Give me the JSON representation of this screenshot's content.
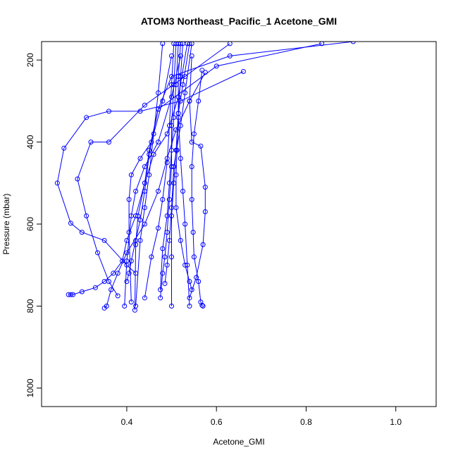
{
  "chart_data": {
    "type": "line",
    "title": "ATOM3 Northeast_Pacific_1 Acetone_GMI",
    "xlabel": "Acetone_GMI",
    "ylabel": "Pressure (mbar)",
    "xlim": [
      0.21,
      1.09
    ],
    "ylim": [
      1045,
      155
    ],
    "y_reversed": true,
    "xticks": [
      0.4,
      0.6,
      0.8,
      1.0
    ],
    "xtick_labels": [
      "0.4",
      "0.6",
      "0.8",
      "1.0"
    ],
    "yticks": [
      200,
      400,
      600,
      800,
      1000
    ],
    "ytick_labels": [
      "200",
      "400",
      "600",
      "800",
      "1000"
    ],
    "grid": false,
    "legend": "none",
    "color": "#0000ff",
    "marker": "open-circle",
    "series": [
      {
        "x": [
          0.905,
          0.63,
          0.5,
          0.47,
          0.45,
          0.44,
          0.42,
          0.4,
          0.39,
          0.37,
          0.35,
          0.33,
          0.3,
          0.28,
          0.275,
          0.27
        ],
        "y": [
          155,
          190,
          240,
          320,
          420,
          500,
          580,
          640,
          690,
          720,
          740,
          755,
          765,
          772,
          772,
          772
        ]
      },
      {
        "x": [
          0.835,
          0.6,
          0.47,
          0.45,
          0.44,
          0.43,
          0.42,
          0.41,
          0.405,
          0.4
        ],
        "y": [
          160,
          215,
          320,
          430,
          520,
          590,
          640,
          690,
          720,
          740
        ]
      },
      {
        "x": [
          0.66,
          0.52,
          0.43,
          0.36,
          0.31,
          0.26,
          0.245,
          0.275,
          0.3,
          0.35,
          0.4,
          0.42
        ],
        "y": [
          228,
          300,
          325,
          325,
          340,
          415,
          500,
          598,
          620,
          640,
          700,
          720
        ]
      },
      {
        "x": [
          0.63,
          0.53,
          0.44,
          0.36,
          0.32,
          0.29,
          0.31,
          0.335,
          0.36,
          0.38
        ],
        "y": [
          160,
          240,
          310,
          400,
          400,
          490,
          580,
          670,
          740,
          775
        ]
      },
      {
        "x": [
          0.575,
          0.54,
          0.51,
          0.49,
          0.47,
          0.44,
          0.4,
          0.38,
          0.365,
          0.355,
          0.35
        ],
        "y": [
          230,
          300,
          370,
          440,
          520,
          600,
          670,
          720,
          760,
          800,
          805
        ]
      },
      {
        "x": [
          0.568,
          0.56,
          0.55,
          0.545,
          0.545,
          0.548,
          0.55,
          0.56,
          0.565,
          0.568,
          0.57
        ],
        "y": [
          225,
          300,
          380,
          460,
          540,
          620,
          680,
          740,
          790,
          798,
          800
        ]
      },
      {
        "x": [
          0.545,
          0.54,
          0.545,
          0.565,
          0.575,
          0.575,
          0.57,
          0.555,
          0.54
        ],
        "y": [
          190,
          300,
          400,
          410,
          510,
          570,
          650,
          730,
          780
        ]
      },
      {
        "x": [
          0.52,
          0.5,
          0.47,
          0.44,
          0.42,
          0.41,
          0.4,
          0.395
        ],
        "y": [
          190,
          290,
          400,
          460,
          520,
          580,
          690,
          800
        ]
      },
      {
        "x": [
          0.5,
          0.48,
          0.455,
          0.43,
          0.41,
          0.405,
          0.405,
          0.41
        ],
        "y": [
          190,
          300,
          400,
          440,
          480,
          540,
          620,
          790
        ]
      },
      {
        "x": [
          0.535,
          0.515,
          0.49,
          0.46,
          0.44,
          0.425,
          0.42,
          0.418
        ],
        "y": [
          160,
          290,
          380,
          430,
          500,
          580,
          650,
          810
        ]
      },
      {
        "x": [
          0.48,
          0.47,
          0.46,
          0.45,
          0.44,
          0.43,
          0.42
        ],
        "y": [
          160,
          280,
          380,
          480,
          560,
          640,
          800
        ]
      },
      {
        "x": [
          0.545,
          0.53,
          0.52,
          0.505,
          0.5,
          0.495,
          0.49,
          0.485
        ],
        "y": [
          160,
          280,
          360,
          460,
          560,
          640,
          700,
          745
        ]
      },
      {
        "x": [
          0.51,
          0.505,
          0.5,
          0.5,
          0.495,
          0.49,
          0.485,
          0.48,
          0.475
        ],
        "y": [
          160,
          260,
          360,
          460,
          540,
          620,
          680,
          720,
          780
        ]
      },
      {
        "x": [
          0.54,
          0.525,
          0.515,
          0.51,
          0.505,
          0.5,
          0.5,
          0.5
        ],
        "y": [
          160,
          260,
          330,
          420,
          500,
          580,
          680,
          800
        ]
      },
      {
        "x": [
          0.52,
          0.515,
          0.515,
          0.52,
          0.525,
          0.53,
          0.535,
          0.54
        ],
        "y": [
          160,
          240,
          340,
          440,
          520,
          600,
          700,
          800
        ]
      },
      {
        "x": [
          0.525,
          0.52,
          0.515,
          0.512,
          0.51,
          0.51,
          0.52,
          0.53,
          0.54,
          0.545
        ],
        "y": [
          160,
          240,
          330,
          420,
          480,
          560,
          640,
          700,
          740,
          760
        ]
      },
      {
        "x": [
          0.505,
          0.5,
          0.495,
          0.49,
          0.48,
          0.47,
          0.455,
          0.44
        ],
        "y": [
          160,
          260,
          360,
          450,
          540,
          610,
          680,
          780
        ]
      },
      {
        "x": [
          0.515,
          0.51,
          0.505,
          0.5,
          0.495,
          0.49,
          0.48,
          0.475
        ],
        "y": [
          160,
          260,
          340,
          420,
          500,
          580,
          660,
          760
        ]
      }
    ]
  }
}
